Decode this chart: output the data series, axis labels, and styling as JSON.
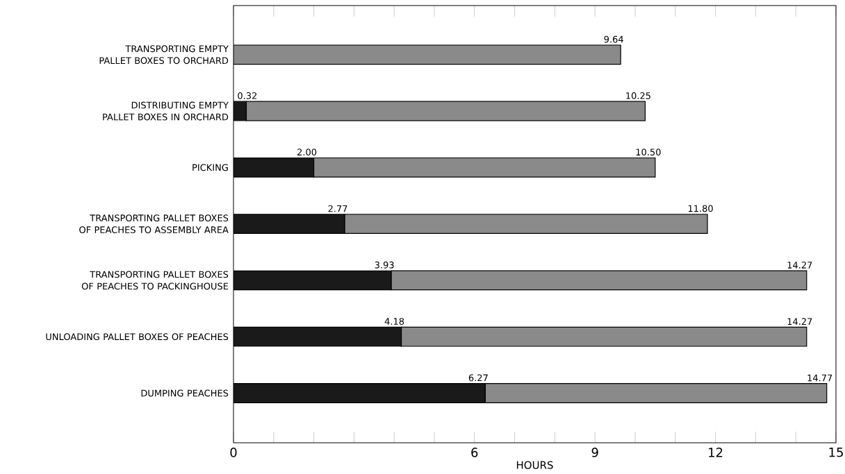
{
  "chart_data": {
    "type": "bar",
    "orientation": "horizontal",
    "stacked": true,
    "xlabel": "HOURS",
    "categories": [
      "TRANSPORTING EMPTY PALLET BOXES TO ORCHARD",
      "DISTRIBUTING EMPTY PALLET BOXES IN ORCHARD",
      "PICKING",
      "TRANSPORTING PALLET BOXES OF PEACHES TO ASSEMBLY AREA",
      "TRANSPORTING PALLET BOXES OF PEACHES TO PACKINGHOUSE",
      "UNLOADING PALLET BOXES OF PEACHES",
      "DUMPING PEACHES"
    ],
    "series": [
      {
        "color": "#1a1a1a",
        "values": [
          null,
          0.32,
          2.0,
          2.77,
          3.93,
          4.18,
          6.27
        ],
        "value_labels": [
          null,
          "0.32",
          "2.00",
          "2.77",
          "3.93",
          "4.18",
          "6.27"
        ]
      },
      {
        "color": "#8a8a8a",
        "values": [
          9.64,
          9.93,
          8.5,
          9.03,
          10.34,
          10.09,
          8.5
        ]
      }
    ],
    "totals": [
      "9.64",
      "10.25",
      "10.50",
      "11.80",
      "14.27",
      "14.27",
      "14.77"
    ],
    "xlim": [
      0,
      15
    ],
    "xticks": [
      0,
      {
        "value": 1,
        "label": null
      },
      {
        "value": 2,
        "label": null
      },
      {
        "value": 3,
        "label": null
      },
      {
        "value": 4,
        "label": null
      },
      {
        "value": 5,
        "label": null
      },
      6,
      {
        "value": 7,
        "label": null
      },
      {
        "value": 8,
        "label": null
      },
      9,
      {
        "value": 10,
        "label": null
      },
      {
        "value": 11,
        "label": null
      },
      12,
      {
        "value": 13,
        "label": null
      },
      {
        "value": 14,
        "label": null
      },
      15
    ]
  }
}
